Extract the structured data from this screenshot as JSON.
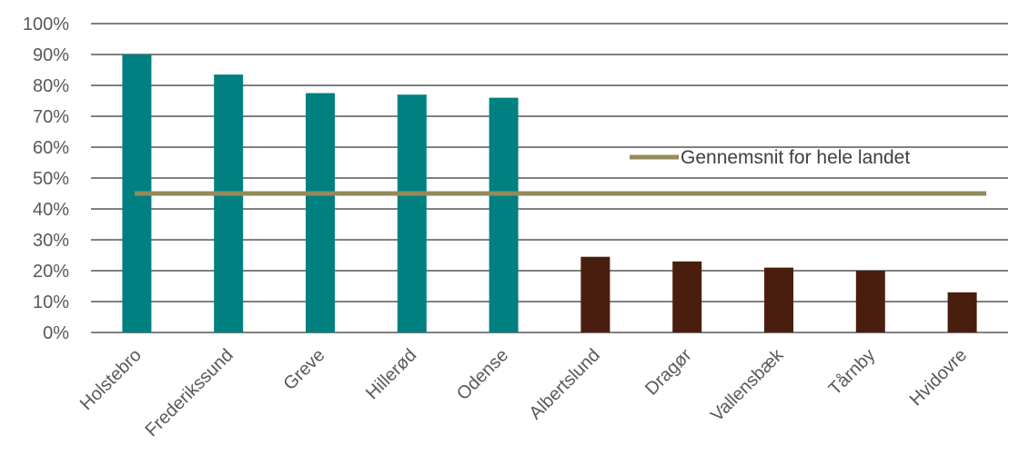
{
  "chart_data": {
    "type": "bar",
    "categories": [
      "Holstebro",
      "Frederikssund",
      "Greve",
      "Hillerød",
      "Odense",
      "Albertslund",
      "Dragør",
      "Vallensbæk",
      "Tårnby",
      "Hvidovre"
    ],
    "values": [
      90,
      83.5,
      77.5,
      77,
      76,
      24.5,
      23,
      21,
      20,
      13
    ],
    "bar_colors": [
      "#008080",
      "#008080",
      "#008080",
      "#008080",
      "#008080",
      "#4a1e0e",
      "#4a1e0e",
      "#4a1e0e",
      "#4a1e0e",
      "#4a1e0e"
    ],
    "reference_line": {
      "name": "Gennemsnit for hele landet",
      "value": 45,
      "color": "#938b5a"
    },
    "yticks": [
      "0%",
      "10%",
      "20%",
      "30%",
      "40%",
      "50%",
      "60%",
      "70%",
      "80%",
      "90%",
      "100%"
    ],
    "ylim": [
      0,
      100
    ],
    "grid": true,
    "legend_position": "top-right"
  }
}
